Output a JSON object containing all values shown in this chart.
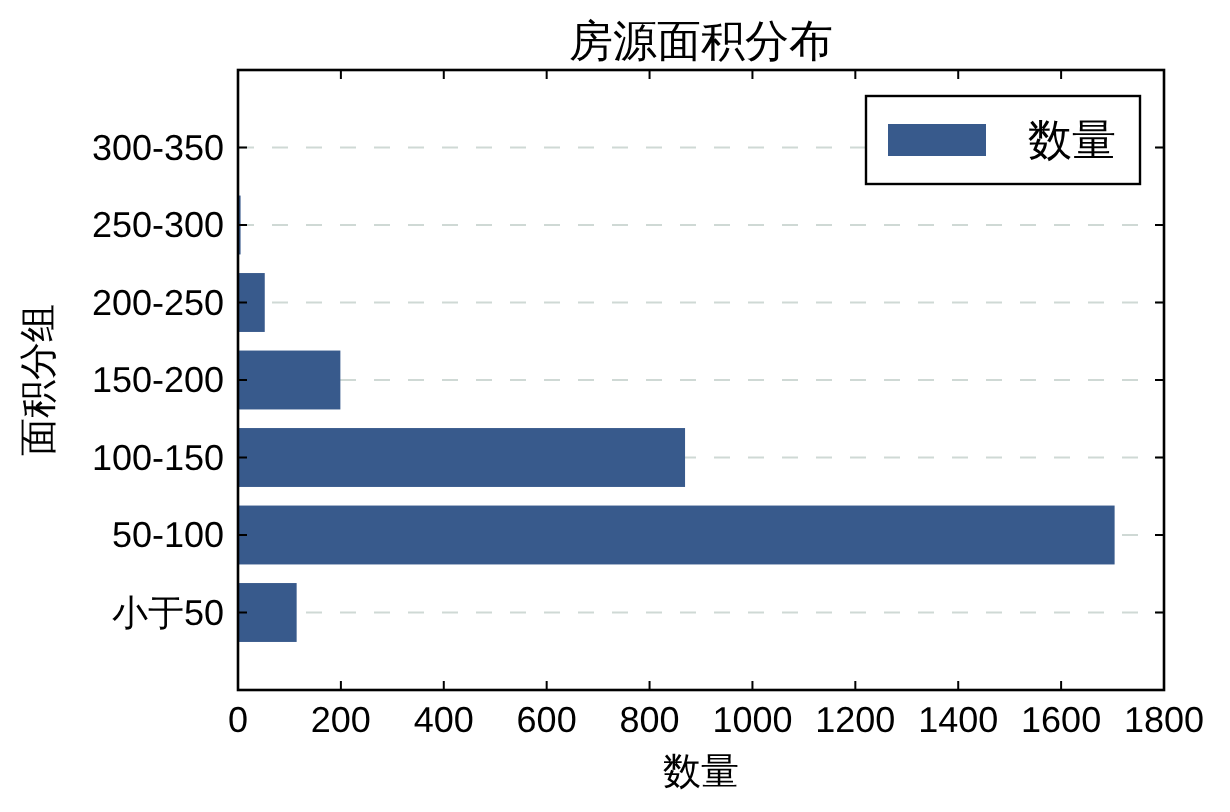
{
  "chart_data": {
    "type": "bar",
    "orientation": "horizontal",
    "title": "房源面积分布",
    "xlabel": "数量",
    "ylabel": "面积分组",
    "categories": [
      "300-350",
      "250-300",
      "200-250",
      "150-200",
      "100-150",
      "50-100",
      "小于50"
    ],
    "series": [
      {
        "name": "数量",
        "color": "#385a8c",
        "values": [
          0,
          5,
          52,
          199,
          869,
          1704,
          114
        ]
      }
    ],
    "xlim": [
      0,
      1800
    ],
    "xticks": [
      0,
      200,
      400,
      600,
      800,
      1000,
      1200,
      1400,
      1600,
      1800
    ],
    "grid": "y",
    "legend": "top right"
  }
}
